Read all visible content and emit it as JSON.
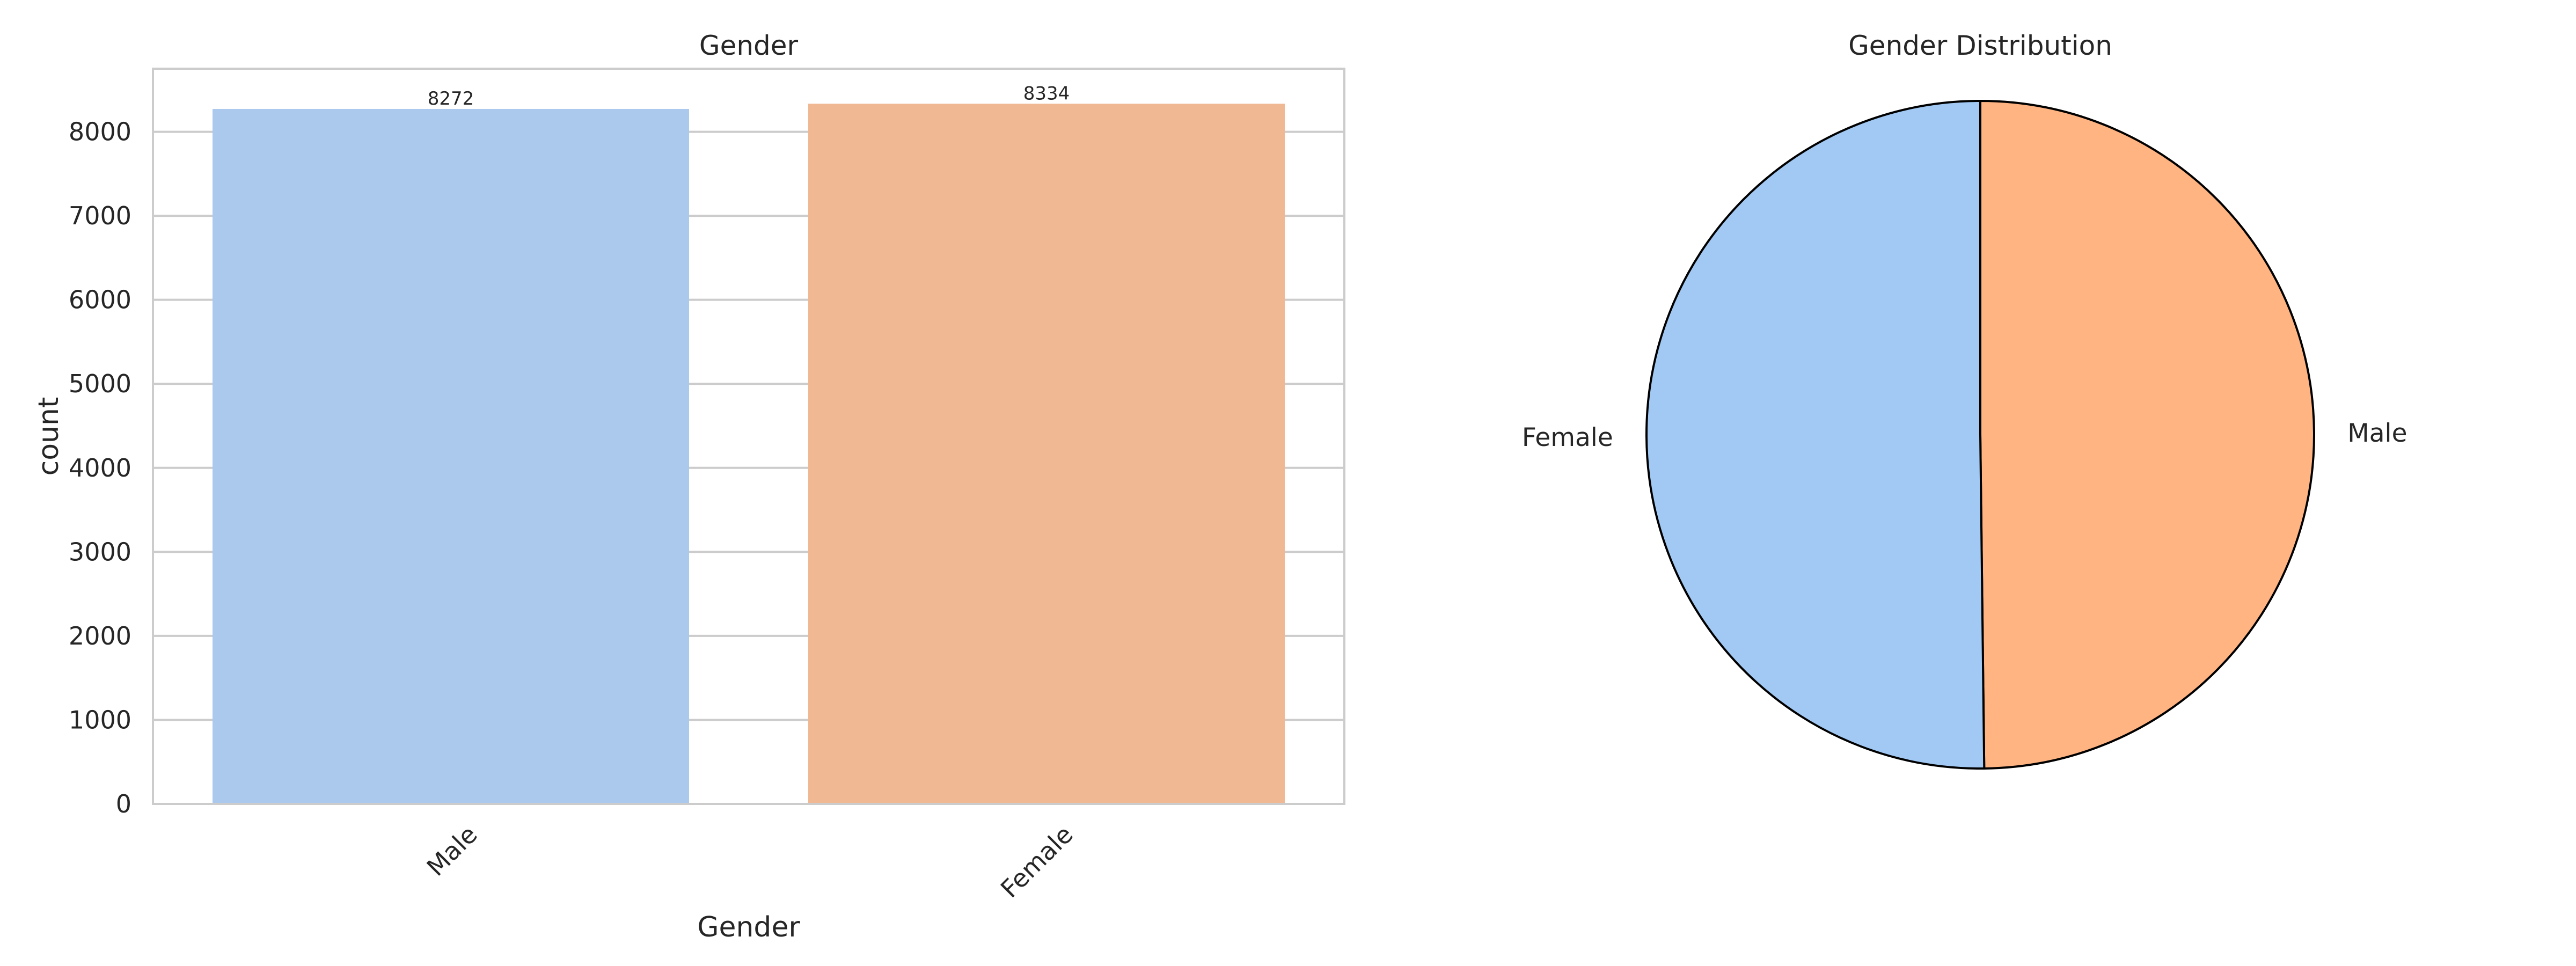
{
  "chart_data": [
    {
      "type": "bar",
      "title": "Gender",
      "xlabel": "Gender",
      "ylabel": "count",
      "categories": [
        "Male",
        "Female"
      ],
      "values": [
        8272,
        8334
      ],
      "value_labels": [
        "8272",
        "8334"
      ],
      "yticks": [
        "0",
        "1000",
        "2000",
        "3000",
        "4000",
        "5000",
        "6000",
        "7000",
        "8000"
      ],
      "ylim": [
        0,
        8751
      ],
      "grid": "horizontal",
      "colors": [
        "#abc9ed",
        "#f0b893"
      ]
    },
    {
      "type": "pie",
      "title": "Gender Distribution",
      "labels": [
        "Male",
        "Female"
      ],
      "values": [
        8272,
        8334
      ],
      "colors": [
        "#ffb482",
        "#a1c9f4"
      ],
      "edge_color": "#000000",
      "start_angle_deg": 90,
      "direction": "clockwise"
    }
  ]
}
